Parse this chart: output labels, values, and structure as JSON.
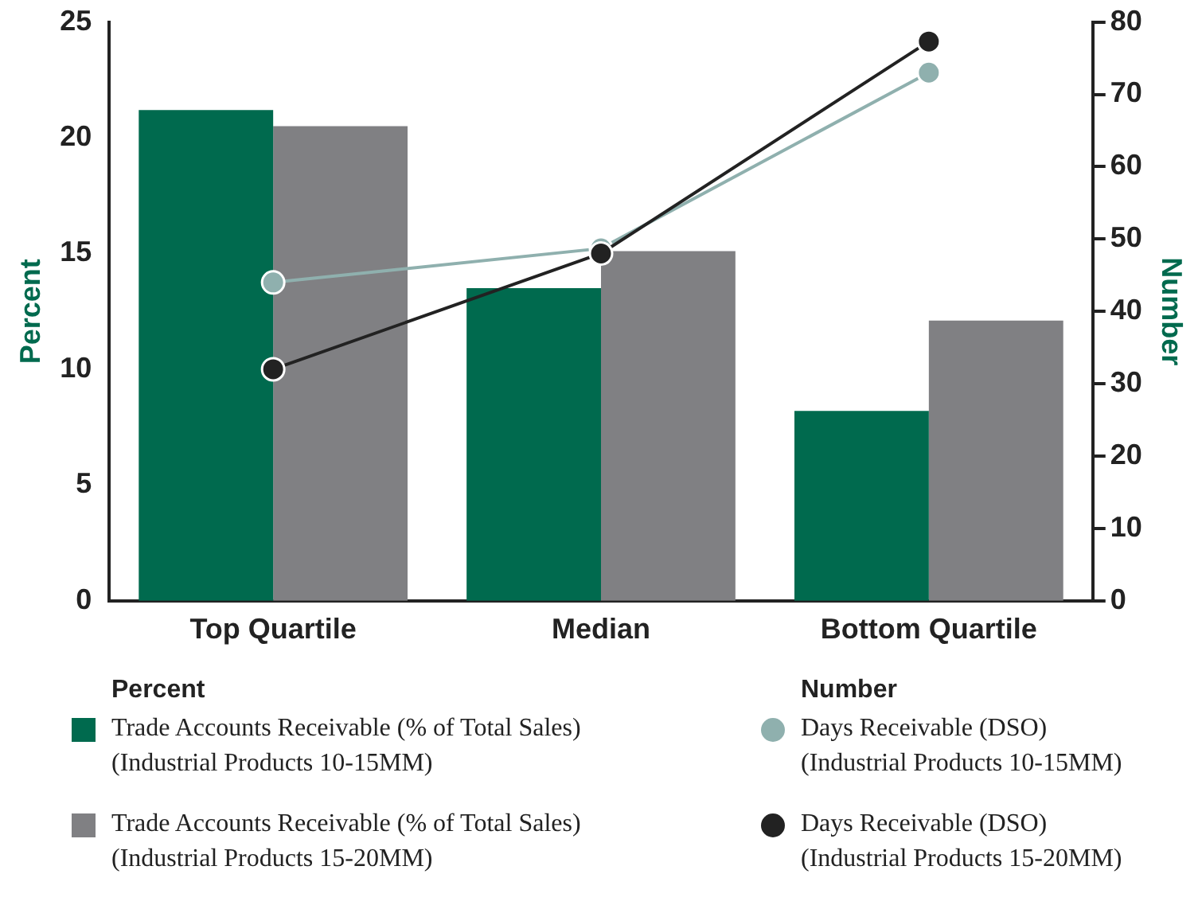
{
  "chart_data": {
    "type": "bar",
    "categories": [
      "Top Quartile",
      "Median",
      "Bottom Quartile"
    ],
    "ylabel": "Percent",
    "y2label": "Number",
    "ylim": [
      0,
      25
    ],
    "yticks": [
      0,
      5,
      10,
      15,
      20,
      25
    ],
    "y2lim": [
      0,
      80
    ],
    "y2ticks": [
      0,
      10,
      20,
      30,
      40,
      50,
      60,
      70,
      80
    ],
    "grid": false,
    "legend": "bottom",
    "marker": "circle",
    "series": [
      {
        "name": "Trade Accounts Receivable (% of Total Sales)\n(Industrial Products 10-15MM)",
        "color": "#006a4e",
        "values": [
          21.2,
          13.5,
          8.2
        ]
      },
      {
        "name": "Trade Accounts Receivable (% of Total Sales)\n(Industrial Products 15-20MM)",
        "color": "#808083",
        "values": [
          20.5,
          15.1,
          12.1
        ]
      },
      {
        "name": "Days Receivable (DSO)\n(Industrial Products 10-15MM)",
        "type": "line",
        "axis": "y2",
        "color": "#8fb0ae",
        "values": [
          44,
          48.7,
          73
        ]
      },
      {
        "name": "Days Receivable (DSO)\n(Industrial Products 15-20MM)",
        "type": "line",
        "axis": "y2",
        "color": "#222222",
        "values": [
          32,
          48,
          77.3
        ]
      }
    ]
  }
}
